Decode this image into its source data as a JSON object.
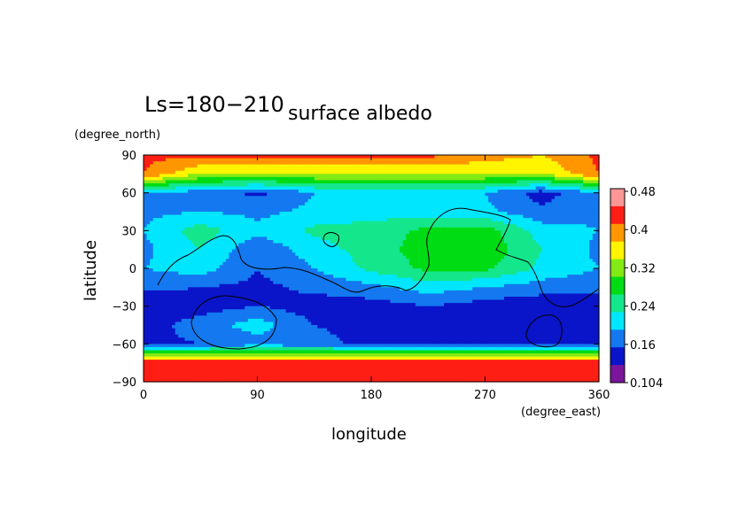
{
  "chart_data": {
    "type": "heatmap",
    "title_prefix": "Ls=180−210",
    "title": "surface albedo",
    "xlabel": "longitude",
    "ylabel": "latitude",
    "x_unit": "(degree_east)",
    "y_unit": "(degree_north)",
    "xlim": [
      0,
      360
    ],
    "ylim": [
      -90,
      90
    ],
    "x_ticks": [
      "0",
      "90",
      "180",
      "270",
      "360"
    ],
    "y_ticks": [
      "90",
      "60",
      "30",
      "0",
      "−30",
      "−60",
      "−90"
    ],
    "colorbar": {
      "levels": [
        0.104,
        0.12,
        0.16,
        0.2,
        0.24,
        0.28,
        0.32,
        0.36,
        0.4,
        0.44,
        0.48
      ],
      "colors": [
        "#7a159c",
        "#0a14c8",
        "#1478f0",
        "#00e6ff",
        "#14e68c",
        "#00dc14",
        "#82ea14",
        "#fff500",
        "#ff9600",
        "#ff1e14",
        "#ff9696"
      ],
      "tick_labels": [
        "0.48",
        "0.4",
        "0.32",
        "0.24",
        "0.16",
        "0.104"
      ]
    },
    "lon": [
      0,
      45,
      90,
      135,
      180,
      225,
      270,
      315,
      360
    ],
    "lat": [
      90,
      75,
      60,
      45,
      30,
      15,
      0,
      -15,
      -30,
      -45,
      -60,
      -75,
      -90
    ],
    "values": [
      [
        0.45,
        0.45,
        0.45,
        0.45,
        0.45,
        0.45,
        0.42,
        0.4,
        0.45
      ],
      [
        0.44,
        0.36,
        0.36,
        0.36,
        0.36,
        0.36,
        0.36,
        0.36,
        0.44
      ],
      [
        0.2,
        0.18,
        0.15,
        0.2,
        0.21,
        0.21,
        0.2,
        0.14,
        0.2
      ],
      [
        0.19,
        0.2,
        0.19,
        0.21,
        0.22,
        0.22,
        0.21,
        0.17,
        0.19
      ],
      [
        0.2,
        0.26,
        0.21,
        0.25,
        0.26,
        0.29,
        0.3,
        0.22,
        0.2
      ],
      [
        0.19,
        0.24,
        0.17,
        0.22,
        0.26,
        0.3,
        0.31,
        0.24,
        0.19
      ],
      [
        0.2,
        0.22,
        0.16,
        0.2,
        0.25,
        0.29,
        0.29,
        0.23,
        0.2
      ],
      [
        0.17,
        0.16,
        0.15,
        0.17,
        0.19,
        0.22,
        0.2,
        0.18,
        0.17
      ],
      [
        0.13,
        0.14,
        0.16,
        0.14,
        0.14,
        0.16,
        0.14,
        0.13,
        0.13
      ],
      [
        0.14,
        0.18,
        0.22,
        0.16,
        0.15,
        0.14,
        0.13,
        0.14,
        0.14
      ],
      [
        0.15,
        0.16,
        0.18,
        0.17,
        0.15,
        0.15,
        0.15,
        0.15,
        0.15
      ],
      [
        0.47,
        0.47,
        0.47,
        0.47,
        0.47,
        0.47,
        0.47,
        0.47,
        0.47
      ],
      [
        0.47,
        0.46,
        0.45,
        0.45,
        0.45,
        0.45,
        0.46,
        0.47,
        0.47
      ]
    ]
  }
}
